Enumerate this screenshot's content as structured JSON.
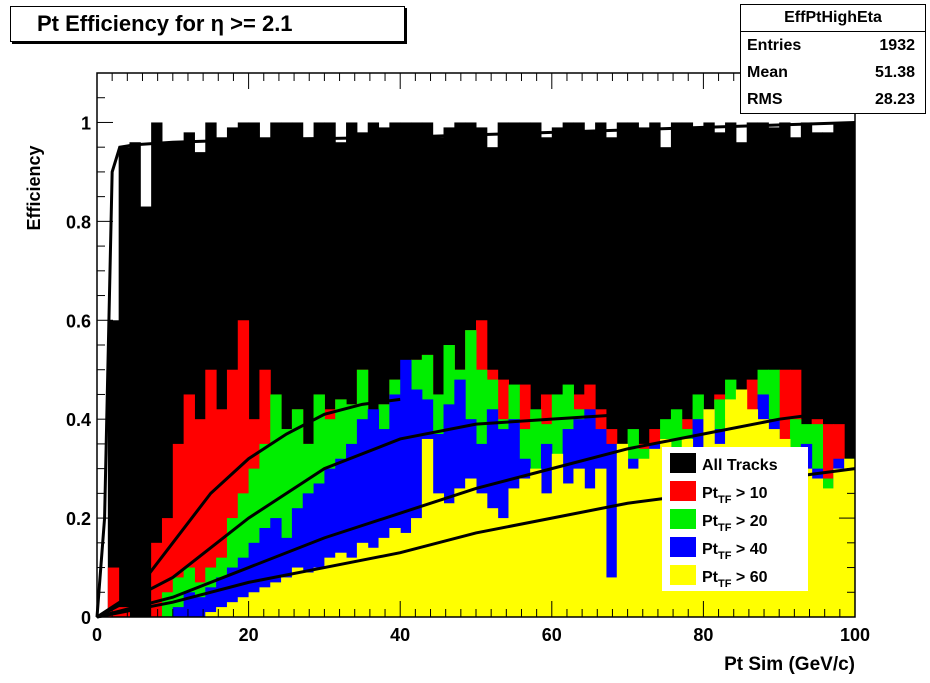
{
  "title_box": {
    "text": "Pt Efficiency for η >= 2.1"
  },
  "stats": {
    "name": "EffPtHighEta",
    "rows": [
      {
        "label": "Entries",
        "value": "1932"
      },
      {
        "label": "Mean",
        "value": "51.38"
      },
      {
        "label": "RMS",
        "value": "28.23"
      }
    ]
  },
  "chart_data": {
    "type": "bar",
    "title": "Pt Efficiency for η >= 2.1",
    "xlabel": "Pt Sim (GeV/c)",
    "ylabel": "Efficiency",
    "xlim": [
      0,
      100
    ],
    "ylim": [
      0,
      1.1
    ],
    "xticks": [
      0,
      20,
      40,
      60,
      80,
      100
    ],
    "yticks": [
      0,
      0.2,
      0.4,
      0.6,
      0.8,
      1
    ],
    "grid": false,
    "legend_position": "bottom-right",
    "bin_width": 1.42857,
    "series": [
      {
        "name": "All Tracks",
        "color": "#000000",
        "values": [
          0,
          0.6,
          0.95,
          0.96,
          0.83,
          1,
          0.96,
          0.96,
          0.98,
          0.94,
          1,
          0.97,
          0.99,
          1,
          1,
          0.97,
          1,
          1,
          1,
          0.97,
          1,
          1,
          0.96,
          1,
          0.98,
          1,
          0.99,
          1,
          1,
          1,
          1,
          0.97,
          0.99,
          1,
          1,
          0.99,
          0.95,
          1,
          1,
          1,
          1,
          0.97,
          0.99,
          1,
          1,
          0.98,
          1,
          0.97,
          1,
          1,
          0.99,
          1,
          0.95,
          1,
          1,
          0.99,
          1,
          0.98,
          1,
          0.96,
          1,
          1,
          0.99,
          1,
          0.97,
          1,
          0.98,
          0.98,
          1,
          1
        ]
      },
      {
        "name": "Pt_TF > 10",
        "color": "#ff0000",
        "values": [
          0,
          0.1,
          0.02,
          0,
          0,
          0.15,
          0.2,
          0.35,
          0.45,
          0.4,
          0.5,
          0.42,
          0.5,
          0.6,
          0.4,
          0.5,
          0.45,
          0.38,
          0.42,
          0.35,
          0.45,
          0.42,
          0.44,
          0.43,
          0.5,
          0.4,
          0.43,
          0.48,
          0.44,
          0.52,
          0.53,
          0.45,
          0.55,
          0.5,
          0.58,
          0.6,
          0.5,
          0.48,
          0.4,
          0.47,
          0.35,
          0.45,
          0.42,
          0.39,
          0.45,
          0.47,
          0.42,
          0.38,
          0.35,
          0.32,
          0.35,
          0.38,
          0.34,
          0.3,
          0.4,
          0.42,
          0.38,
          0.45,
          0.4,
          0.44,
          0.48,
          0.38,
          0.4,
          0.5,
          0.5,
          0.35,
          0.4,
          0.39,
          0.39,
          0.28
        ]
      },
      {
        "name": "Pt_TF > 20",
        "color": "#00ee00",
        "values": [
          0,
          0,
          0,
          0,
          0,
          0,
          0.05,
          0.08,
          0.1,
          0.07,
          0.1,
          0.12,
          0.2,
          0.25,
          0.3,
          0.35,
          0.45,
          0.38,
          0.42,
          0.35,
          0.45,
          0.4,
          0.44,
          0.43,
          0.5,
          0.4,
          0.43,
          0.48,
          0.44,
          0.52,
          0.53,
          0.45,
          0.55,
          0.5,
          0.58,
          0.5,
          0.48,
          0.4,
          0.47,
          0.38,
          0.42,
          0.39,
          0.45,
          0.47,
          0.42,
          0.38,
          0.35,
          0.32,
          0.35,
          0.38,
          0.34,
          0.3,
          0.4,
          0.42,
          0.38,
          0.45,
          0.4,
          0.44,
          0.48,
          0.38,
          0.4,
          0.5,
          0.5,
          0.35,
          0.4,
          0.39,
          0.39,
          0.28,
          0.3,
          0.32
        ]
      },
      {
        "name": "Pt_TF > 40",
        "color": "#0000ff",
        "values": [
          0,
          0,
          0,
          0,
          0,
          0,
          0,
          0.02,
          0.05,
          0.04,
          0.06,
          0.08,
          0.1,
          0.12,
          0.15,
          0.18,
          0.2,
          0.16,
          0.22,
          0.25,
          0.27,
          0.3,
          0.32,
          0.35,
          0.4,
          0.42,
          0.38,
          0.45,
          0.52,
          0.46,
          0.44,
          0.37,
          0.43,
          0.48,
          0.4,
          0.35,
          0.42,
          0.38,
          0.4,
          0.32,
          0.28,
          0.35,
          0.3,
          0.38,
          0.4,
          0.42,
          0.38,
          0.35,
          0.3,
          0.32,
          0.28,
          0.35,
          0.36,
          0.3,
          0.33,
          0.4,
          0.42,
          0.38,
          0.4,
          0.36,
          0.38,
          0.45,
          0.4,
          0.3,
          0.32,
          0.35,
          0.3,
          0.25,
          0.32,
          0.28
        ]
      },
      {
        "name": "Pt_TF > 60",
        "color": "#ffff00",
        "values": [
          0,
          0,
          0,
          0,
          0,
          0,
          0,
          0,
          0,
          0,
          0.01,
          0.02,
          0.03,
          0.04,
          0.05,
          0.06,
          0.07,
          0.08,
          0.1,
          0.09,
          0.1,
          0.12,
          0.13,
          0.12,
          0.15,
          0.14,
          0.16,
          0.18,
          0.17,
          0.2,
          0.36,
          0.25,
          0.23,
          0.26,
          0.28,
          0.25,
          0.22,
          0.2,
          0.26,
          0.28,
          0.3,
          0.25,
          0.33,
          0.27,
          0.3,
          0.26,
          0.3,
          0.08,
          0.35,
          0.3,
          0.32,
          0.34,
          0.36,
          0.32,
          0.36,
          0.33,
          0.42,
          0.35,
          0.44,
          0.46,
          0.42,
          0.4,
          0.38,
          0.36,
          0.24,
          0.3,
          0.28,
          0.26,
          0.3,
          0.32
        ]
      }
    ],
    "fit_curves": [
      {
        "series": "All Tracks",
        "x": [
          0,
          1,
          2,
          3,
          5,
          10,
          20,
          40,
          60,
          80,
          100
        ],
        "y": [
          0,
          0.2,
          0.9,
          0.95,
          0.955,
          0.96,
          0.965,
          0.97,
          0.98,
          0.99,
          1.0
        ]
      },
      {
        "series": "Pt_TF > 10",
        "x": [
          0,
          5,
          10,
          15,
          20,
          25,
          30,
          35,
          40
        ],
        "y": [
          0,
          0.05,
          0.15,
          0.25,
          0.32,
          0.37,
          0.41,
          0.43,
          0.44
        ]
      },
      {
        "series": "Pt_TF > 20",
        "x": [
          0,
          10,
          20,
          30,
          40,
          50,
          60,
          70
        ],
        "y": [
          0,
          0.08,
          0.2,
          0.3,
          0.36,
          0.39,
          0.4,
          0.41
        ]
      },
      {
        "series": "Pt_TF > 40",
        "x": [
          0,
          10,
          20,
          30,
          40,
          50,
          60,
          70,
          80,
          90,
          100
        ],
        "y": [
          0,
          0.04,
          0.1,
          0.16,
          0.21,
          0.26,
          0.3,
          0.34,
          0.37,
          0.4,
          0.42
        ]
      },
      {
        "series": "Pt_TF > 60",
        "x": [
          0,
          10,
          20,
          30,
          40,
          50,
          60,
          70,
          80,
          90,
          100
        ],
        "y": [
          0,
          0.03,
          0.07,
          0.1,
          0.13,
          0.17,
          0.2,
          0.23,
          0.25,
          0.28,
          0.3
        ]
      }
    ]
  }
}
